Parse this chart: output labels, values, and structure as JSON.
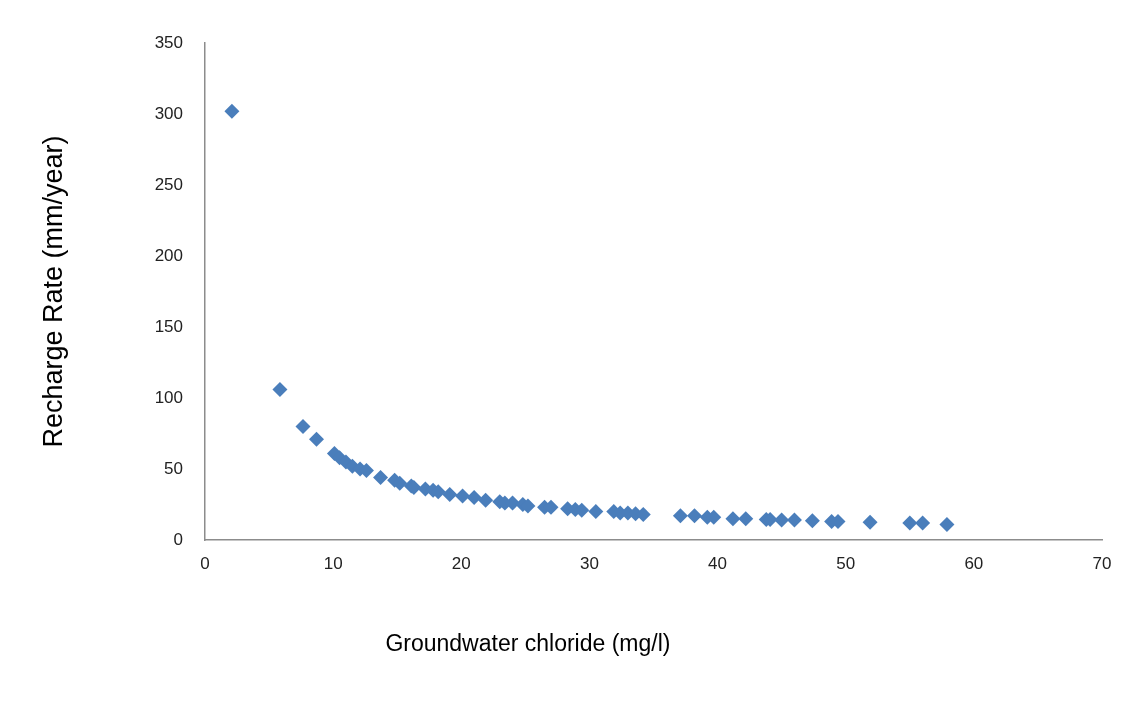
{
  "chart_data": {
    "type": "scatter",
    "xlabel": "Groundwater chloride (mg/l)",
    "ylabel": "Recharge Rate (mm/year)",
    "xlim": [
      0,
      70
    ],
    "xticks": [
      0,
      10,
      20,
      30,
      40,
      50,
      60,
      70
    ],
    "ylim": [
      0,
      350
    ],
    "yticks": [
      0,
      50,
      100,
      150,
      200,
      250,
      300,
      350
    ],
    "grid": false,
    "marker": "diamond",
    "series": [
      {
        "color": "#4a7ebb",
        "x": [
          2.1,
          5.85,
          7.65,
          8.7,
          10.1,
          10.5,
          11.0,
          11.5,
          12.1,
          12.6,
          13.7,
          14.8,
          15.2,
          16.1,
          16.3,
          17.2,
          17.8,
          18.2,
          19.1,
          20.1,
          21.0,
          21.9,
          23.0,
          23.4,
          24.0,
          24.8,
          25.2,
          26.5,
          27.0,
          28.3,
          28.9,
          29.4,
          30.5,
          31.9,
          32.4,
          33.0,
          33.6,
          34.2,
          37.1,
          38.2,
          39.2,
          39.7,
          41.2,
          42.2,
          43.8,
          44.1,
          45.0,
          46.0,
          47.4,
          48.9,
          49.4,
          51.9,
          55.0,
          56.0,
          57.9
        ],
        "values": [
          302,
          106,
          80,
          71,
          61,
          58,
          55,
          52,
          50,
          49,
          44,
          42,
          40,
          38,
          37,
          36,
          35,
          34,
          32,
          31,
          30,
          28,
          27,
          26,
          26,
          25,
          24,
          23,
          23,
          22,
          21.5,
          21,
          20,
          20,
          19,
          19,
          18.5,
          18,
          17,
          17,
          16,
          16,
          15,
          15,
          14.5,
          14.5,
          14,
          14,
          13.5,
          13,
          13,
          12.5,
          12,
          12,
          11
        ]
      }
    ]
  }
}
